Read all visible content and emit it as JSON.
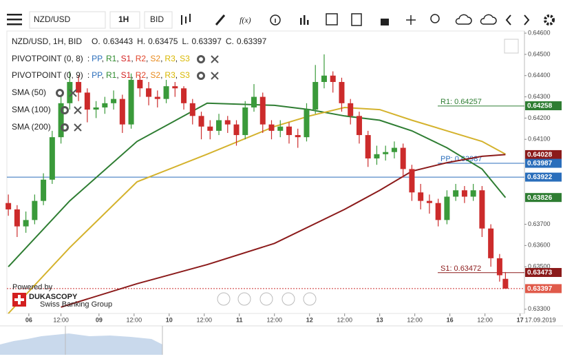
{
  "chart_data": {
    "type": "candlestick",
    "toolbar": {
      "symbol": "NZD/USD",
      "period": "1H",
      "side": "BID",
      "fx": "f(x)"
    },
    "header": {
      "instrument": "NZD/USD, 1H, BID",
      "o_label": "O.",
      "h_label": "H.",
      "l_label": "L.",
      "c_label": "C."
    },
    "pivot_legends": [
      {
        "title": "PIVOTPOINT (0, 8)",
        "lead": ":",
        "sep": ","
      },
      {
        "title": "PIVOTPOINT (0, 9)",
        "lead": ":",
        "sep": ","
      }
    ],
    "pivot_names": [
      {
        "name": "PP",
        "color": "#2a6ebb"
      },
      {
        "name": "R1",
        "color": "#2e8b2e"
      },
      {
        "name": "S1",
        "color": "#d32020"
      },
      {
        "name": "R2",
        "color": "#e0452a"
      },
      {
        "name": "S2",
        "color": "#e8891a"
      },
      {
        "name": "R3",
        "color": "#d9b700"
      },
      {
        "name": "S3",
        "color": "#d9b700"
      }
    ],
    "xlim": [
      -0.5,
      176.5
    ],
    "ylim": [
      0.6328,
      0.6461
    ],
    "xticks": [
      {
        "value": 7,
        "label": "06"
      },
      {
        "value": 18,
        "label": "12:00"
      },
      {
        "value": 31,
        "label": "09"
      },
      {
        "value": 43,
        "label": "12:00"
      },
      {
        "value": 55,
        "label": "10"
      },
      {
        "value": 67,
        "label": "12:00"
      },
      {
        "value": 79,
        "label": "11"
      },
      {
        "value": 91,
        "label": "12:00"
      },
      {
        "value": 103,
        "label": "12"
      },
      {
        "value": 115,
        "label": "12:00"
      },
      {
        "value": 127,
        "label": "13"
      },
      {
        "value": 139,
        "label": "12:00"
      },
      {
        "value": 151,
        "label": "16"
      },
      {
        "value": 163,
        "label": "12:00"
      },
      {
        "value": 175,
        "label": "17"
      }
    ],
    "date_label": "17.09.2019",
    "yticks": [
      {
        "value": 0.646,
        "label": "0.64600"
      },
      {
        "value": 0.645,
        "label": "0.64500"
      },
      {
        "value": 0.644,
        "label": "0.64400"
      },
      {
        "value": 0.643,
        "label": "0.64300"
      },
      {
        "value": 0.642,
        "label": "0.64200"
      },
      {
        "value": 0.641,
        "label": "0.64100"
      },
      {
        "value": 0.637,
        "label": "0.63700"
      },
      {
        "value": 0.636,
        "label": "0.63600"
      },
      {
        "value": 0.635,
        "label": "0.63500"
      },
      {
        "value": 0.633,
        "label": "0.63300"
      }
    ],
    "up_color": "#3a9a3a",
    "down_color": "#cc2b2b",
    "candles": [
      {
        "x": 0,
        "o": 0.638,
        "h": 0.6384,
        "l": 0.6374,
        "c": 0.6377
      },
      {
        "x": 3,
        "o": 0.6377,
        "h": 0.6379,
        "l": 0.6364,
        "c": 0.6369
      },
      {
        "x": 6,
        "o": 0.6369,
        "h": 0.6376,
        "l": 0.6366,
        "c": 0.6372
      },
      {
        "x": 9,
        "o": 0.6372,
        "h": 0.6384,
        "l": 0.637,
        "c": 0.6381
      },
      {
        "x": 12,
        "o": 0.6381,
        "h": 0.6394,
        "l": 0.6379,
        "c": 0.6391
      },
      {
        "x": 15,
        "o": 0.6391,
        "h": 0.6414,
        "l": 0.6389,
        "c": 0.6411
      },
      {
        "x": 18,
        "o": 0.6411,
        "h": 0.643,
        "l": 0.6408,
        "c": 0.6427
      },
      {
        "x": 21,
        "o": 0.6427,
        "h": 0.6442,
        "l": 0.6424,
        "c": 0.6437
      },
      {
        "x": 24,
        "o": 0.6437,
        "h": 0.644,
        "l": 0.6428,
        "c": 0.6432
      },
      {
        "x": 27,
        "o": 0.6432,
        "h": 0.6434,
        "l": 0.6418,
        "c": 0.6424
      },
      {
        "x": 30,
        "o": 0.6424,
        "h": 0.6428,
        "l": 0.642,
        "c": 0.6425
      },
      {
        "x": 33,
        "o": 0.6425,
        "h": 0.643,
        "l": 0.6422,
        "c": 0.6427
      },
      {
        "x": 36,
        "o": 0.6427,
        "h": 0.6433,
        "l": 0.6424,
        "c": 0.6429
      },
      {
        "x": 39,
        "o": 0.6429,
        "h": 0.6431,
        "l": 0.6413,
        "c": 0.6417
      },
      {
        "x": 42,
        "o": 0.6417,
        "h": 0.6441,
        "l": 0.6415,
        "c": 0.6438
      },
      {
        "x": 45,
        "o": 0.6438,
        "h": 0.644,
        "l": 0.643,
        "c": 0.6434
      },
      {
        "x": 48,
        "o": 0.6434,
        "h": 0.6437,
        "l": 0.6426,
        "c": 0.643
      },
      {
        "x": 51,
        "o": 0.643,
        "h": 0.6433,
        "l": 0.6425,
        "c": 0.6429
      },
      {
        "x": 54,
        "o": 0.6429,
        "h": 0.6438,
        "l": 0.6427,
        "c": 0.6435
      },
      {
        "x": 57,
        "o": 0.6435,
        "h": 0.6437,
        "l": 0.643,
        "c": 0.6434
      },
      {
        "x": 60,
        "o": 0.6434,
        "h": 0.6435,
        "l": 0.6424,
        "c": 0.6427
      },
      {
        "x": 63,
        "o": 0.6427,
        "h": 0.6429,
        "l": 0.6417,
        "c": 0.6421
      },
      {
        "x": 66,
        "o": 0.6421,
        "h": 0.6423,
        "l": 0.641,
        "c": 0.6416
      },
      {
        "x": 69,
        "o": 0.6416,
        "h": 0.6419,
        "l": 0.641,
        "c": 0.6414
      },
      {
        "x": 72,
        "o": 0.6414,
        "h": 0.6422,
        "l": 0.6412,
        "c": 0.6419
      },
      {
        "x": 75,
        "o": 0.6419,
        "h": 0.6421,
        "l": 0.6413,
        "c": 0.6417
      },
      {
        "x": 78,
        "o": 0.6417,
        "h": 0.6419,
        "l": 0.6407,
        "c": 0.6412
      },
      {
        "x": 81,
        "o": 0.6412,
        "h": 0.6428,
        "l": 0.641,
        "c": 0.6425
      },
      {
        "x": 84,
        "o": 0.6425,
        "h": 0.6436,
        "l": 0.6423,
        "c": 0.643
      },
      {
        "x": 87,
        "o": 0.643,
        "h": 0.6432,
        "l": 0.6413,
        "c": 0.6417
      },
      {
        "x": 90,
        "o": 0.6417,
        "h": 0.6419,
        "l": 0.641,
        "c": 0.6414
      },
      {
        "x": 93,
        "o": 0.6414,
        "h": 0.6419,
        "l": 0.6411,
        "c": 0.6416
      },
      {
        "x": 96,
        "o": 0.6416,
        "h": 0.6418,
        "l": 0.6408,
        "c": 0.6412
      },
      {
        "x": 99,
        "o": 0.6412,
        "h": 0.6415,
        "l": 0.6406,
        "c": 0.6411
      },
      {
        "x": 102,
        "o": 0.6411,
        "h": 0.6427,
        "l": 0.6409,
        "c": 0.6424
      },
      {
        "x": 105,
        "o": 0.6424,
        "h": 0.6445,
        "l": 0.6422,
        "c": 0.6437
      },
      {
        "x": 108,
        "o": 0.6437,
        "h": 0.645,
        "l": 0.6434,
        "c": 0.644
      },
      {
        "x": 111,
        "o": 0.644,
        "h": 0.6442,
        "l": 0.6432,
        "c": 0.6437
      },
      {
        "x": 114,
        "o": 0.6437,
        "h": 0.6439,
        "l": 0.6423,
        "c": 0.6427
      },
      {
        "x": 117,
        "o": 0.6427,
        "h": 0.6429,
        "l": 0.6417,
        "c": 0.6421
      },
      {
        "x": 120,
        "o": 0.6421,
        "h": 0.6423,
        "l": 0.6408,
        "c": 0.6412
      },
      {
        "x": 123,
        "o": 0.6412,
        "h": 0.6414,
        "l": 0.6397,
        "c": 0.6401
      },
      {
        "x": 126,
        "o": 0.6401,
        "h": 0.6407,
        "l": 0.6398,
        "c": 0.6403
      },
      {
        "x": 129,
        "o": 0.6403,
        "h": 0.6407,
        "l": 0.64,
        "c": 0.6404
      },
      {
        "x": 132,
        "o": 0.6404,
        "h": 0.6409,
        "l": 0.6401,
        "c": 0.6406
      },
      {
        "x": 135,
        "o": 0.6406,
        "h": 0.6408,
        "l": 0.6392,
        "c": 0.6396
      },
      {
        "x": 138,
        "o": 0.6396,
        "h": 0.6398,
        "l": 0.6381,
        "c": 0.6385
      },
      {
        "x": 141,
        "o": 0.6385,
        "h": 0.6389,
        "l": 0.6377,
        "c": 0.6381
      },
      {
        "x": 144,
        "o": 0.6381,
        "h": 0.6384,
        "l": 0.6375,
        "c": 0.638
      },
      {
        "x": 147,
        "o": 0.638,
        "h": 0.6382,
        "l": 0.6369,
        "c": 0.6372
      },
      {
        "x": 150,
        "o": 0.6372,
        "h": 0.6386,
        "l": 0.637,
        "c": 0.6383
      },
      {
        "x": 153,
        "o": 0.6383,
        "h": 0.6389,
        "l": 0.6381,
        "c": 0.6386
      },
      {
        "x": 156,
        "o": 0.6386,
        "h": 0.6388,
        "l": 0.638,
        "c": 0.6383
      },
      {
        "x": 159,
        "o": 0.6383,
        "h": 0.6389,
        "l": 0.6381,
        "c": 0.6386
      },
      {
        "x": 162,
        "o": 0.6386,
        "h": 0.6388,
        "l": 0.6364,
        "c": 0.6368
      },
      {
        "x": 165,
        "o": 0.6368,
        "h": 0.637,
        "l": 0.635,
        "c": 0.6354
      },
      {
        "x": 168,
        "o": 0.6354,
        "h": 0.6356,
        "l": 0.6343,
        "c": 0.6346
      },
      {
        "x": 170,
        "o": 0.63443,
        "h": 0.63475,
        "l": 0.63397,
        "c": 0.63397
      }
    ],
    "series": [
      {
        "name": "SMA (50)",
        "color": "#2e7d32",
        "x": [
          0,
          21,
          44,
          68,
          91,
          103,
          115,
          127,
          138,
          150,
          162,
          170
        ],
        "values": [
          0.635,
          0.6381,
          0.6409,
          0.6427,
          0.6426,
          0.6424,
          0.6421,
          0.6419,
          0.6414,
          0.6406,
          0.6396,
          0.63826
        ]
      },
      {
        "name": "SMA (100)",
        "color": "#d4b22c",
        "x": [
          0,
          21,
          44,
          68,
          91,
          103,
          115,
          127,
          138,
          150,
          162,
          170
        ],
        "values": [
          0.6328,
          0.6359,
          0.639,
          0.6403,
          0.6416,
          0.6421,
          0.6425,
          0.6424,
          0.6419,
          0.6414,
          0.6409,
          0.6403
        ]
      },
      {
        "name": "SMA (200)",
        "color": "#8b1a1a",
        "x": [
          18,
          44,
          68,
          91,
          115,
          127,
          138,
          150,
          162,
          170
        ],
        "values": [
          0.6331,
          0.6342,
          0.6351,
          0.6361,
          0.6377,
          0.6386,
          0.6395,
          0.6399,
          0.6402,
          0.64028
        ]
      }
    ],
    "pivot_levels": [
      {
        "label": "R1:",
        "value": 0.64257,
        "color": "#2e7d32"
      },
      {
        "label": "PP:",
        "value": 0.63987,
        "color": "#2a6ebb"
      },
      {
        "label": "S1:",
        "value": 0.63472,
        "color": "#8b1a1a"
      }
    ],
    "price_lines": [
      {
        "value": 0.63922,
        "color": "#2a6ebb",
        "dash": false
      },
      {
        "value": 0.63397,
        "color": "#cc2b2b",
        "dash": true
      }
    ],
    "price_tags": [
      {
        "value": 0.64258,
        "color": "#2e7d32"
      },
      {
        "value": 0.64028,
        "color": "#8b1a1a"
      },
      {
        "value": 0.63987,
        "color": "#2a6ebb"
      },
      {
        "value": 0.63922,
        "color": "#2a6ebb"
      },
      {
        "value": 0.63826,
        "color": "#2e7d32"
      },
      {
        "value": 0.63473,
        "color": "#8b1a1a"
      },
      {
        "value": 0.63397,
        "color": "#e05a4a"
      }
    ],
    "branding": {
      "powered": "Powered by",
      "name": "DUKASCOPY",
      "tagline": "Swiss Banking Group"
    }
  }
}
